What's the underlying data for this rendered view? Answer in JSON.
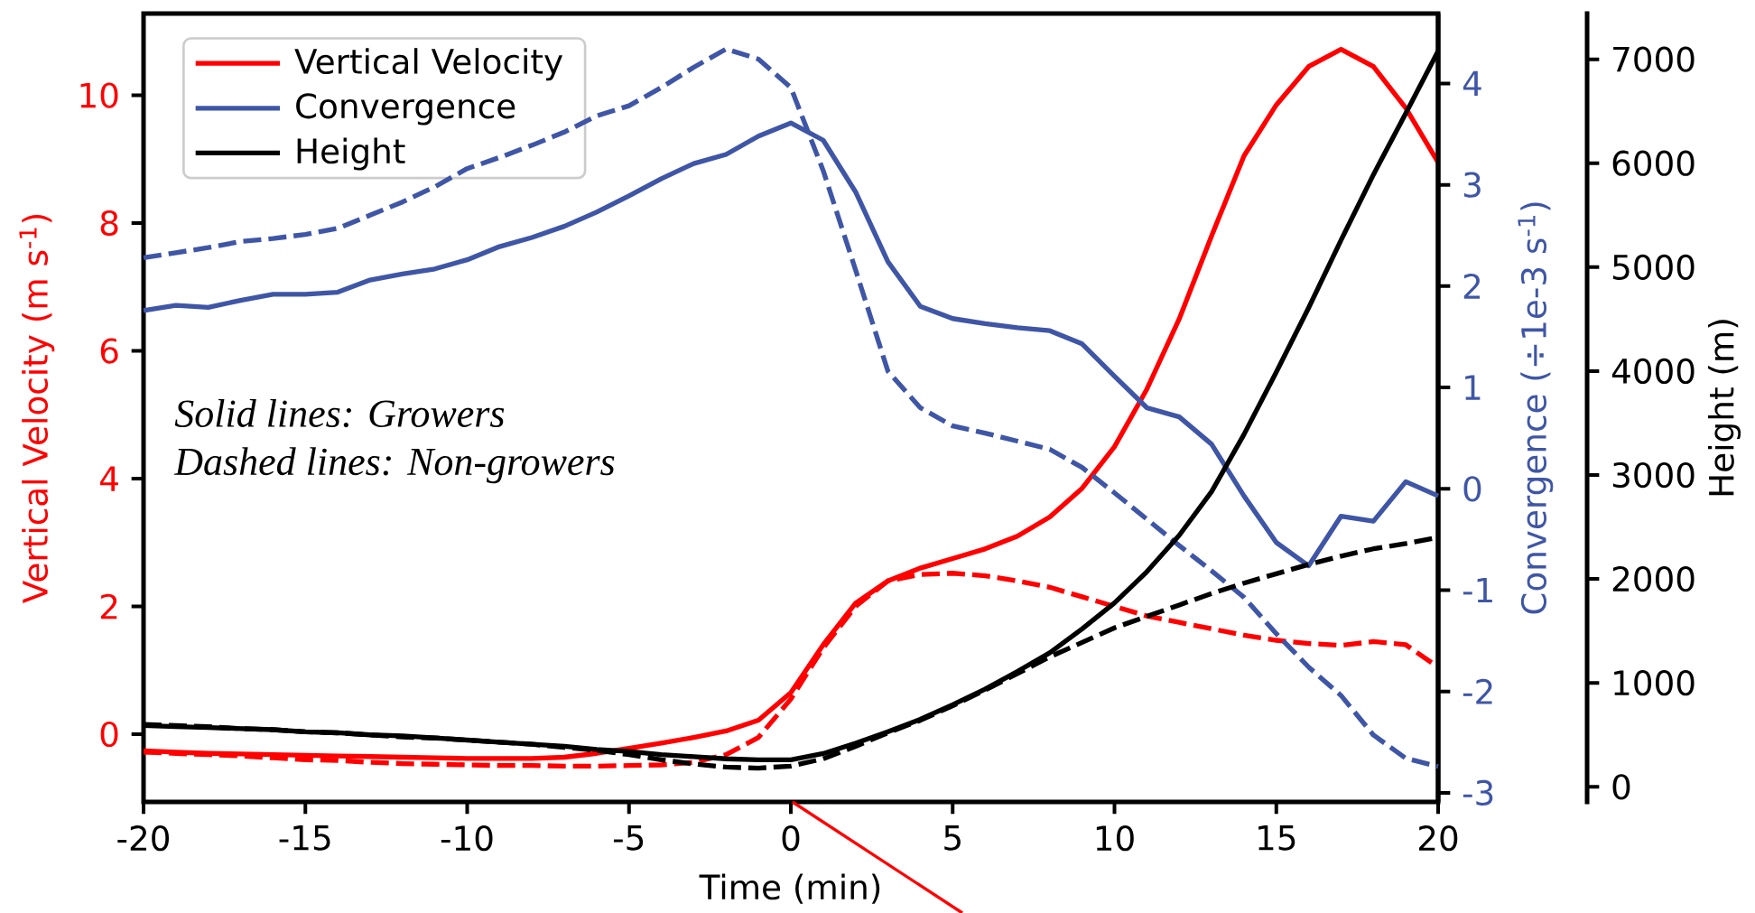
{
  "chart_data": {
    "type": "line",
    "xlabel": "Time (min)",
    "ylabel": "Vertical Velocity (m s$^{-1}$)",
    "y2label": "Convergence (÷1e-3 s$^{-1}$)",
    "y3label": "Height (m)",
    "annotations": [
      "Solid lines: Growers",
      "Dashed lines: Non-growers"
    ],
    "legend": "top left",
    "xlim": [
      -20,
      20
    ],
    "xticks": [
      -20,
      -15,
      -10,
      -5,
      0,
      5,
      10,
      15,
      20
    ],
    "ylim": [
      -1.06,
      11.28
    ],
    "yticks": [
      0,
      2,
      4,
      6,
      8,
      10
    ],
    "y2lim": [
      -3.09,
      4.69
    ],
    "y2ticks": [
      -3,
      -2,
      -1,
      0,
      1,
      2,
      3,
      4
    ],
    "y3lim": [
      -145,
      7440
    ],
    "y3ticks": [
      0,
      1000,
      2000,
      3000,
      4000,
      5000,
      6000,
      7000
    ],
    "x": [
      -20,
      -19,
      -18,
      -17,
      -16,
      -15,
      -14,
      -13,
      -12,
      -11,
      -10,
      -9,
      -8,
      -7,
      -6,
      -5,
      -4,
      -3,
      -2,
      -1,
      0,
      1,
      2,
      3,
      4,
      5,
      6,
      7,
      8,
      9,
      10,
      11,
      12,
      13,
      14,
      15,
      16,
      17,
      18,
      19,
      20
    ],
    "series": [
      {
        "name": "Vertical Velocity",
        "color": "#ff0000",
        "axis": "y",
        "line_style": "solid",
        "values": [
          -0.26,
          -0.28,
          -0.3,
          -0.31,
          -0.32,
          -0.33,
          -0.34,
          -0.35,
          -0.36,
          -0.37,
          -0.38,
          -0.38,
          -0.38,
          -0.36,
          -0.3,
          -0.22,
          -0.14,
          -0.05,
          0.05,
          0.22,
          0.65,
          1.4,
          2.05,
          2.4,
          2.6,
          2.75,
          2.9,
          3.1,
          3.4,
          3.85,
          4.5,
          5.4,
          6.5,
          7.8,
          9.05,
          9.85,
          10.45,
          10.72,
          10.45,
          9.8,
          8.95
        ]
      },
      {
        "color": "#ff0000",
        "axis": "y",
        "line_style": "dashed",
        "values": [
          -0.28,
          -0.3,
          -0.32,
          -0.34,
          -0.37,
          -0.4,
          -0.41,
          -0.44,
          -0.46,
          -0.47,
          -0.48,
          -0.49,
          -0.49,
          -0.5,
          -0.5,
          -0.49,
          -0.48,
          -0.44,
          -0.32,
          -0.05,
          0.55,
          1.35,
          2.0,
          2.4,
          2.5,
          2.52,
          2.48,
          2.4,
          2.3,
          2.15,
          2.0,
          1.85,
          1.75,
          1.65,
          1.55,
          1.47,
          1.42,
          1.39,
          1.45,
          1.4,
          1.05
        ]
      },
      {
        "name": "Convergence",
        "color": "#3f56a6",
        "axis": "y2",
        "line_style": "solid",
        "values": [
          1.76,
          1.81,
          1.79,
          1.86,
          1.92,
          1.92,
          1.94,
          2.06,
          2.12,
          2.17,
          2.26,
          2.39,
          2.48,
          2.59,
          2.73,
          2.89,
          3.06,
          3.21,
          3.3,
          3.48,
          3.61,
          3.44,
          2.93,
          2.24,
          1.8,
          1.68,
          1.63,
          1.59,
          1.56,
          1.43,
          1.11,
          0.8,
          0.71,
          0.44,
          -0.07,
          -0.53,
          -0.76,
          -0.27,
          -0.32,
          0.07,
          -0.07
        ]
      },
      {
        "color": "#3f56a6",
        "axis": "y2",
        "line_style": "dashed",
        "values": [
          2.28,
          2.33,
          2.38,
          2.44,
          2.47,
          2.51,
          2.57,
          2.7,
          2.83,
          2.98,
          3.16,
          3.27,
          3.39,
          3.52,
          3.68,
          3.78,
          3.96,
          4.16,
          4.34,
          4.24,
          3.96,
          3.14,
          2.16,
          1.16,
          0.8,
          0.62,
          0.55,
          0.47,
          0.39,
          0.21,
          -0.04,
          -0.3,
          -0.56,
          -0.81,
          -1.07,
          -1.43,
          -1.76,
          -2.04,
          -2.43,
          -2.66,
          -2.74
        ]
      },
      {
        "name": "Height",
        "color": "#000000",
        "axis": "y3",
        "line_style": "solid",
        "values": [
          590,
          580,
          570,
          560,
          550,
          530,
          520,
          500,
          490,
          470,
          450,
          430,
          410,
          390,
          360,
          340,
          310,
          290,
          270,
          260,
          260,
          320,
          420,
          530,
          650,
          790,
          940,
          1110,
          1290,
          1520,
          1770,
          2070,
          2420,
          2840,
          3390,
          3990,
          4610,
          5260,
          5890,
          6480,
          7080
        ]
      },
      {
        "color": "#000000",
        "axis": "y3",
        "line_style": "dashed",
        "values": [
          600,
          590,
          580,
          560,
          550,
          530,
          520,
          500,
          480,
          470,
          450,
          430,
          410,
          380,
          350,
          310,
          260,
          220,
          190,
          180,
          200,
          270,
          390,
          520,
          640,
          780,
          930,
          1090,
          1250,
          1390,
          1530,
          1640,
          1750,
          1860,
          1960,
          2050,
          2140,
          2220,
          2290,
          2340,
          2400
        ]
      }
    ]
  }
}
